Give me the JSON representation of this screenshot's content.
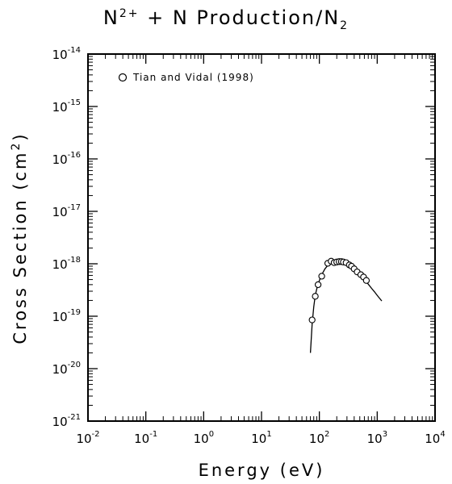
{
  "chart_data": {
    "type": "scatter",
    "title": {
      "base": "N",
      "sup": "2+",
      "mid": " + N Production/N",
      "sub": "2"
    },
    "xlabel": "Energy (eV)",
    "ylabel": {
      "text": "Cross Section (cm",
      "sup": "2",
      "end": ")"
    },
    "x_scale": "log",
    "y_scale": "log",
    "xlim": [
      0.01,
      10000
    ],
    "ylim": [
      1e-21,
      1e-14
    ],
    "x_ticks": [
      {
        "base": "10",
        "exp": "-2",
        "value": 0.01
      },
      {
        "base": "10",
        "exp": "-1",
        "value": 0.1
      },
      {
        "base": "10",
        "exp": "0",
        "value": 1
      },
      {
        "base": "10",
        "exp": "1",
        "value": 10
      },
      {
        "base": "10",
        "exp": "2",
        "value": 100
      },
      {
        "base": "10",
        "exp": "3",
        "value": 1000
      },
      {
        "base": "10",
        "exp": "4",
        "value": 10000
      }
    ],
    "y_ticks": [
      {
        "base": "10",
        "exp": "-21",
        "value": 1e-21
      },
      {
        "base": "10",
        "exp": "-20",
        "value": 1e-20
      },
      {
        "base": "10",
        "exp": "-19",
        "value": 1e-19
      },
      {
        "base": "10",
        "exp": "-18",
        "value": 1e-18
      },
      {
        "base": "10",
        "exp": "-17",
        "value": 1e-17
      },
      {
        "base": "10",
        "exp": "-16",
        "value": 1e-16
      },
      {
        "base": "10",
        "exp": "-15",
        "value": 1e-15
      },
      {
        "base": "10",
        "exp": "-14",
        "value": 1e-14
      }
    ],
    "legend": {
      "position": "top-left",
      "label": "Tian and Vidal (1998)",
      "marker": "open-circle"
    },
    "grid": false,
    "series": [
      {
        "name": "Tian and Vidal (1998)",
        "style": "markers",
        "x": [
          75,
          85,
          95,
          110,
          140,
          160,
          180,
          200,
          220,
          240,
          260,
          290,
          330,
          360,
          400,
          450,
          520,
          580,
          650
        ],
        "y": [
          8.5e-20,
          2.4e-19,
          4e-19,
          5.8e-19,
          1.02e-18,
          1.12e-18,
          1.05e-18,
          1.08e-18,
          1.1e-18,
          1.1e-18,
          1.08e-18,
          1.05e-18,
          9.5e-19,
          9e-19,
          8e-19,
          7e-19,
          6.2e-19,
          5.6e-19,
          4.8e-19
        ]
      },
      {
        "name": "",
        "style": "line",
        "x": [
          70,
          75,
          80,
          85,
          90,
          100,
          110,
          125,
          140,
          160,
          180,
          200,
          225,
          250,
          275,
          300,
          350,
          400,
          450,
          500,
          600,
          700,
          800,
          900,
          1000,
          1200
        ],
        "y": [
          2e-20,
          7e-20,
          1.5e-19,
          2.5e-19,
          3.3e-19,
          4.8e-19,
          6.2e-19,
          8e-19,
          9.3e-19,
          1.03e-18,
          1.07e-18,
          1.08e-18,
          1.07e-18,
          1.04e-18,
          1e-18,
          9.5e-19,
          8.6e-19,
          7.7e-19,
          6.9e-19,
          6.2e-19,
          5e-19,
          4.1e-19,
          3.4e-19,
          2.9e-19,
          2.5e-19,
          1.95e-19
        ]
      }
    ]
  }
}
